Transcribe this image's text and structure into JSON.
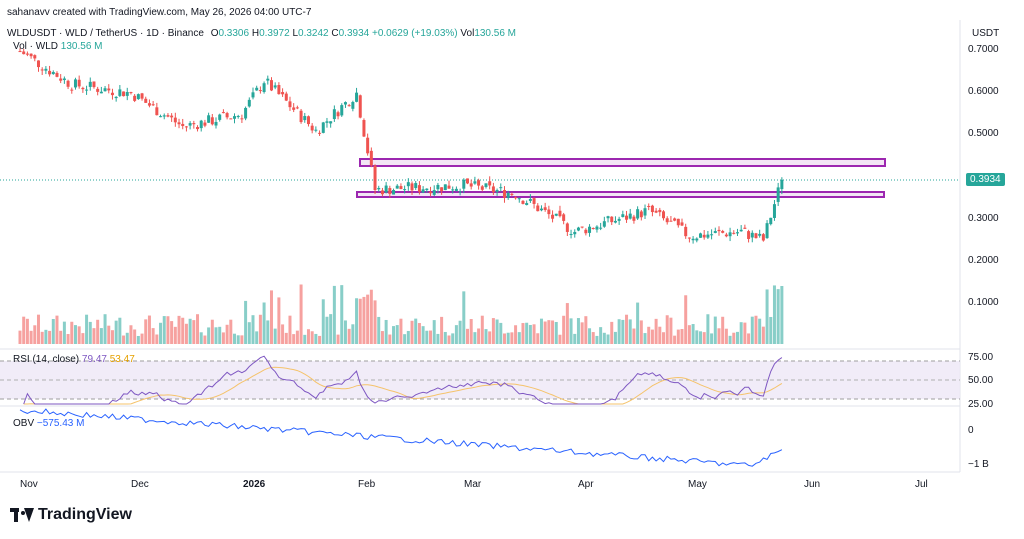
{
  "credit": "sahanavv created with TradingView.com, May 26, 2026 04:00 UTC-7",
  "symbol_line": "WLDUSDT · WLD / TetherUS · 1D · Binance",
  "ohlc": {
    "o_label": "O",
    "o": "0.3306",
    "h_label": "H",
    "h": "0.3972",
    "l_label": "L",
    "l": "0.3242",
    "c_label": "C",
    "c": "0.3934",
    "chg": "+0.0629 (+19.03%)",
    "vol_label": "Vol",
    "vol": "130.56 M"
  },
  "vol_line": {
    "label": "Vol · WLD",
    "value": "130.56 M"
  },
  "currency": "USDT",
  "price_labels": [
    "0.7000",
    "0.6000",
    "0.5000",
    "0.3000",
    "0.2000",
    "0.1000"
  ],
  "last_price": "0.3934",
  "rsi": {
    "label": "RSI (14, close)",
    "value": "79.47",
    "ma": "53.47",
    "levels": [
      "75.00",
      "50.00",
      "25.00"
    ]
  },
  "obv": {
    "label": "OBV",
    "value": "−575.43 M",
    "levels": [
      "0",
      "−1 B"
    ]
  },
  "time_labels": [
    "Nov",
    "Dec",
    "2026",
    "Feb",
    "Mar",
    "Apr",
    "May",
    "Jun",
    "Jul"
  ],
  "brand": "TradingView",
  "colors": {
    "up": "#26a69a",
    "down": "#ef5350",
    "box": "#9c27b0",
    "rsi": "#7e57c2",
    "obv": "#2962ff",
    "ma": "#f5c36b"
  },
  "chart_data": [
    {
      "type": "candlestick",
      "title": "WLD / TetherUS · 1D",
      "ylim": [
        0.18,
        0.74
      ],
      "x_range": [
        "Nov 2025",
        "Jul 2026"
      ],
      "approx_close_path": [
        {
          "date": "2025-11-01",
          "close": 0.7
        },
        {
          "date": "2025-11-15",
          "close": 0.62
        },
        {
          "date": "2025-12-01",
          "close": 0.6
        },
        {
          "date": "2025-12-15",
          "close": 0.52
        },
        {
          "date": "2025-12-31",
          "close": 0.55
        },
        {
          "date": "2026-01-06",
          "close": 0.63
        },
        {
          "date": "2026-01-20",
          "close": 0.51
        },
        {
          "date": "2026-01-31",
          "close": 0.6
        },
        {
          "date": "2026-02-05",
          "close": 0.37
        },
        {
          "date": "2026-03-01",
          "close": 0.38
        },
        {
          "date": "2026-03-15",
          "close": 0.36
        },
        {
          "date": "2026-03-31",
          "close": 0.27
        },
        {
          "date": "2026-04-20",
          "close": 0.32
        },
        {
          "date": "2026-05-01",
          "close": 0.26
        },
        {
          "date": "2026-05-15",
          "close": 0.27
        },
        {
          "date": "2026-05-21",
          "close": 0.25
        },
        {
          "date": "2026-05-26",
          "close": 0.3934
        }
      ],
      "zones": [
        {
          "low": 0.42,
          "high": 0.44
        },
        {
          "low": 0.35,
          "high": 0.36
        }
      ],
      "volume_max_label": "0.1000"
    },
    {
      "type": "line",
      "title": "RSI (14, close)",
      "ylim": [
        20,
        80
      ],
      "last": 79.47,
      "ma_last": 53.47
    },
    {
      "type": "line",
      "title": "OBV",
      "last": "−575.43 M"
    }
  ]
}
